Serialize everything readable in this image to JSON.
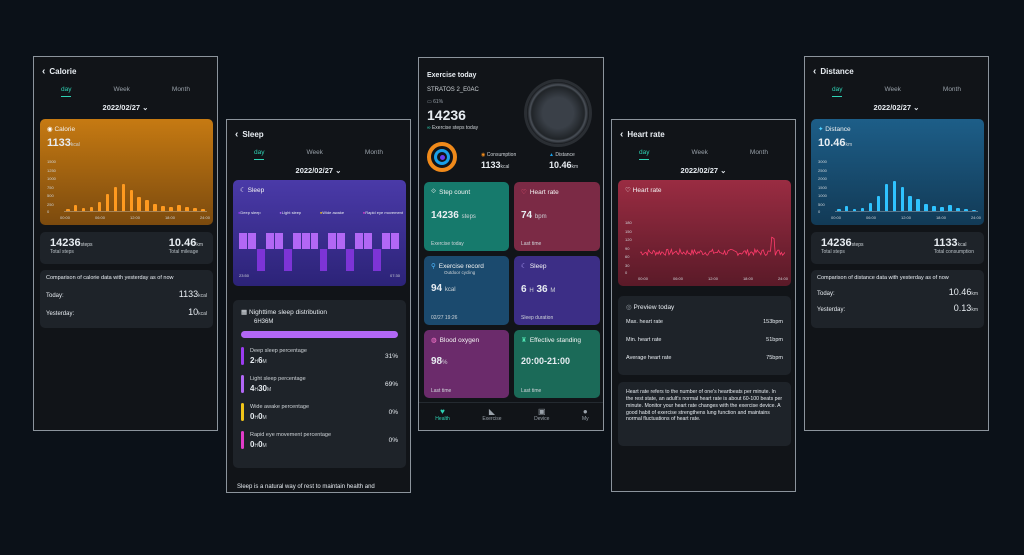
{
  "calorie": {
    "title": "Calorie",
    "tabs": [
      "day",
      "Week",
      "Month"
    ],
    "date": "2022/02/27",
    "card_title": "Calorie",
    "value": "1133",
    "unit": "kcal",
    "y_ticks": [
      "1500",
      "1250",
      "1000",
      "750",
      "500",
      "250",
      "0"
    ],
    "x_ticks": [
      "00:00",
      "06:00",
      "12:00",
      "18:00",
      "24:00"
    ],
    "bars": [
      0.05,
      0.12,
      0.06,
      0.08,
      0.18,
      0.34,
      0.5,
      0.56,
      0.42,
      0.28,
      0.22,
      0.14,
      0.1,
      0.08,
      0.12,
      0.08,
      0.06,
      0.04
    ],
    "steps": "14236",
    "steps_unit": "steps",
    "steps_label": "Total steps",
    "mileage": "10.46",
    "mileage_unit": "km",
    "mileage_label": "Total mileage",
    "compare_title": "Comparison of calorie data with yesterday as of now",
    "today_label": "Today:",
    "today_value": "1133",
    "today_unit": "kcal",
    "yesterday_label": "Yesterday:",
    "yesterday_value": "10",
    "yesterday_unit": "kcal",
    "color": "#c57410"
  },
  "sleep": {
    "title": "Sleep",
    "tabs": [
      "day",
      "Week",
      "Month"
    ],
    "date": "2022/02/27",
    "card_title": "Sleep",
    "legend": [
      "Deep sleep",
      "Light sleep",
      "Wide awake",
      "Rapid eye movement"
    ],
    "x_start": "23:50",
    "x_end": "07:30",
    "dist_title": "Nighttime sleep distribution",
    "dist_total": "6H36M",
    "items": [
      {
        "label": "Deep sleep percentage",
        "h": "2",
        "m": "6",
        "pct": "31%",
        "color": "#9b3cf0"
      },
      {
        "label": "Light sleep percentage",
        "h": "4",
        "m": "30",
        "pct": "69%",
        "color": "#b267f5"
      },
      {
        "label": "Wide awake percentage",
        "h": "0",
        "m": "0",
        "pct": "0%",
        "color": "#f0c419"
      },
      {
        "label": "Rapid eye movement percentage",
        "h": "0",
        "m": "0",
        "pct": "0%",
        "color": "#e23cc9"
      }
    ],
    "h_unit": "H",
    "m_unit": "M",
    "footer": "Sleep is a natural way of rest to maintain health and"
  },
  "home": {
    "title": "Exercise today",
    "device": "STRATOS 2_E0AC",
    "battery": "61%",
    "steps": "14236",
    "steps_label": "Exercise steps today",
    "consumption_label": "Consumption",
    "consumption_value": "1133",
    "consumption_unit": "kcal",
    "distance_label": "Distance",
    "distance_value": "10.46",
    "distance_unit": "km",
    "tiles": [
      {
        "title": "Step count",
        "value": "14236",
        "unit": "steps",
        "sub": "Exercise today",
        "color": "#167a6c"
      },
      {
        "title": "Heart rate",
        "value": "74",
        "unit": "bpm",
        "sub": "Last time",
        "color": "#7b2a45"
      },
      {
        "title": "Exercise record",
        "subtitle": "Outdoor cycling",
        "value": "94",
        "unit": "kcal",
        "sub": "02/27  19:26",
        "color": "#1b4a6e"
      },
      {
        "title": "Sleep",
        "value": "6",
        "unit": "H",
        "value2": "36",
        "unit2": "M",
        "sub": "Sleep duration",
        "color": "#3c2e86"
      },
      {
        "title": "Blood oxygen",
        "value": "98",
        "unit": "%",
        "sub": "Last time",
        "color": "#6b2b6b"
      },
      {
        "title": "Effective standing",
        "value": "20:00-21:00",
        "unit": "",
        "sub": "Last time",
        "color": "#1b6a58"
      }
    ],
    "nav": [
      "Health",
      "Exercise",
      "Device",
      "My"
    ]
  },
  "heart": {
    "title": "Heart rate",
    "tabs": [
      "day",
      "Week",
      "Month"
    ],
    "date": "2022/02/27",
    "card_title": "Heart rate",
    "y_ticks": [
      "180",
      "150",
      "120",
      "90",
      "60",
      "30",
      "0"
    ],
    "x_ticks": [
      "00:00",
      "06:00",
      "12:00",
      "18:00",
      "24:00"
    ],
    "preview_title": "Preview today",
    "max_label": "Max. heart rate",
    "max_value": "153bpm",
    "min_label": "Min. heart rate",
    "min_value": "51bpm",
    "avg_label": "Average heart rate",
    "avg_value": "75bpm",
    "desc": "Heart rate refers to the number of one's heartbeats per minute. In the rest state, an adult's normal heart rate is about 60-100 beats per minute. Monitor your heart rate changes with the exercise device. A good habit of exercise strengthens lung function and maintains normal fluctuations of heart rate.",
    "color": "#8c2a3c"
  },
  "distance": {
    "title": "Distance",
    "tabs": [
      "day",
      "Week",
      "Month"
    ],
    "date": "2022/02/27",
    "card_title": "Distance",
    "value": "10.46",
    "unit": "km",
    "y_ticks": [
      "3000",
      "2500",
      "2000",
      "1500",
      "1000",
      "500",
      "0"
    ],
    "x_ticks": [
      "00:00",
      "06:00",
      "12:00",
      "18:00",
      "24:00"
    ],
    "bars": [
      0.04,
      0.1,
      0.05,
      0.07,
      0.16,
      0.3,
      0.55,
      0.62,
      0.48,
      0.3,
      0.24,
      0.15,
      0.1,
      0.08,
      0.12,
      0.07,
      0.05,
      0.03
    ],
    "steps": "14236",
    "steps_unit": "steps",
    "steps_label": "Total steps",
    "consumption": "1133",
    "consumption_unit": "kcal",
    "consumption_label": "Total consumption",
    "compare_title": "Comparison of distance data with yesterday as of now",
    "today_label": "Today:",
    "today_value": "10.46",
    "today_unit": "km",
    "yesterday_label": "Yesterday:",
    "yesterday_value": "0.13",
    "yesterday_unit": "km",
    "color": "#1c5a80"
  }
}
